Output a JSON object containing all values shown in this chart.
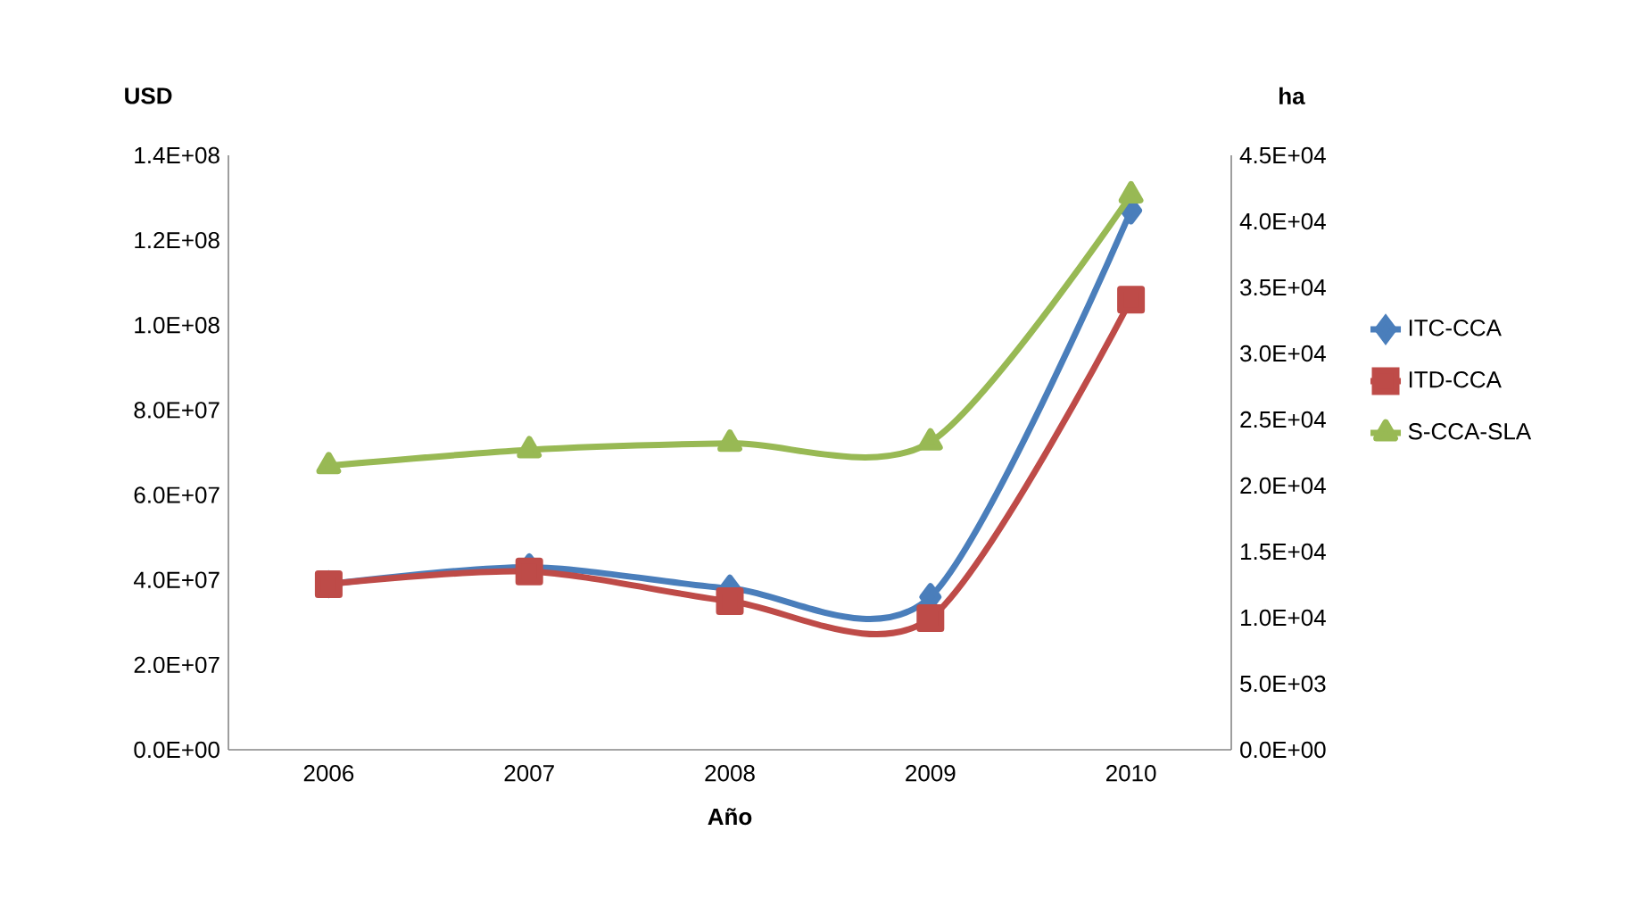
{
  "chart_data": {
    "type": "line",
    "xlabel": "Año",
    "ylabel": "USD",
    "y2label": "ha",
    "categories": [
      "2006",
      "2007",
      "2008",
      "2009",
      "2010"
    ],
    "series": [
      {
        "name": "ITC-CCA",
        "color": "#4a7ebb",
        "marker": "diamond",
        "values": [
          39000000.0,
          43000000.0,
          38000000.0,
          36000000.0,
          127000000.0
        ]
      },
      {
        "name": "ITD-CCA",
        "color": "#be4b48",
        "marker": "square",
        "values": [
          39000000.0,
          42000000.0,
          35000000.0,
          31000000.0,
          106000000.0
        ]
      },
      {
        "name": "S-CCA-SLA",
        "color": "#98b954",
        "marker": "triangle",
        "axis": "y2",
        "values": [
          21500.0,
          22700.0,
          23200.0,
          23300.0,
          42000.0
        ]
      }
    ],
    "ylim": [
      0,
      140000000.0
    ],
    "yticks": [
      {
        "value": 0,
        "label": "0.0E+00"
      },
      {
        "value": 20000000.0,
        "label": "2.0E+07"
      },
      {
        "value": 40000000.0,
        "label": "4.0E+07"
      },
      {
        "value": 60000000.0,
        "label": "6.0E+07"
      },
      {
        "value": 80000000.0,
        "label": "8.0E+07"
      },
      {
        "value": 100000000.0,
        "label": "1.0E+08"
      },
      {
        "value": 120000000.0,
        "label": "1.2E+08"
      },
      {
        "value": 140000000.0,
        "label": "1.4E+08"
      }
    ],
    "y2lim": [
      0,
      45000.0
    ],
    "y2ticks": [
      {
        "value": 0,
        "label": "0.0E+00"
      },
      {
        "value": 5000.0,
        "label": "5.0E+03"
      },
      {
        "value": 10000.0,
        "label": "1.0E+04"
      },
      {
        "value": 15000.0,
        "label": "1.5E+04"
      },
      {
        "value": 20000.0,
        "label": "2.0E+04"
      },
      {
        "value": 25000.0,
        "label": "2.5E+04"
      },
      {
        "value": 30000.0,
        "label": "3.0E+04"
      },
      {
        "value": 35000.0,
        "label": "3.5E+04"
      },
      {
        "value": 40000.0,
        "label": "4.0E+04"
      },
      {
        "value": 45000.0,
        "label": "4.5E+04"
      }
    ],
    "legend": "right",
    "line_style": "solid"
  }
}
